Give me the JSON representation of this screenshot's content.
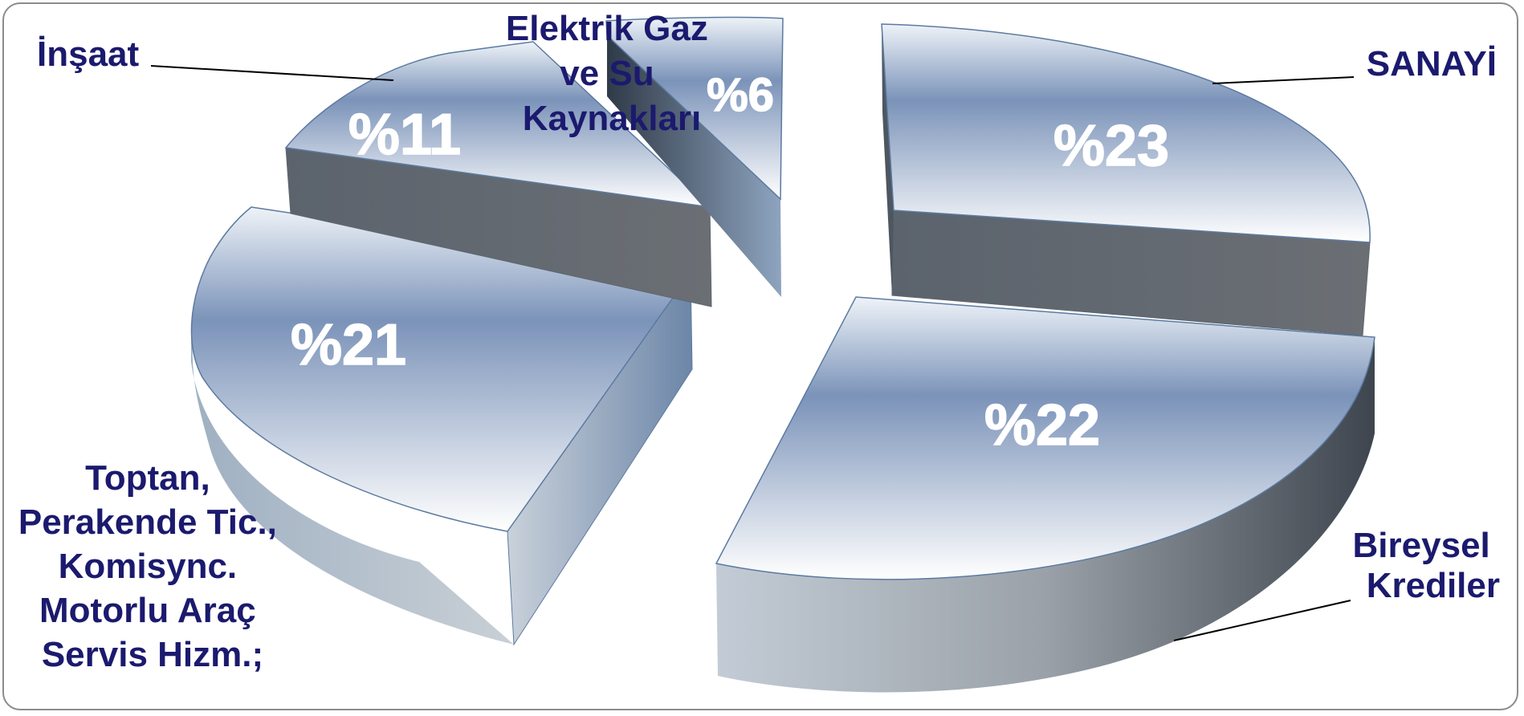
{
  "chart_data": {
    "type": "pie",
    "style": "3d-exploded",
    "slices": [
      {
        "label": [
          "SANAYİ"
        ],
        "value": 23,
        "value_label": "%23"
      },
      {
        "label": [
          "Bireysel",
          "Krediler"
        ],
        "value": 22,
        "value_label": "%22"
      },
      {
        "label": [
          "Toptan,",
          "Perakende Tic.,",
          "Komisync.",
          "Motorlu Araç",
          "Servis Hizm.;"
        ],
        "value": 21,
        "value_label": "%21"
      },
      {
        "label": [
          "İnşaat"
        ],
        "value": 11,
        "value_label": "%11"
      },
      {
        "label": [
          "Elektrik Gaz",
          "ve Su",
          "Kaynakları"
        ],
        "value": 6,
        "value_label": "%6"
      }
    ]
  },
  "colors": {
    "label_text": "#1b1a6e",
    "value_text": "#ffffff",
    "top_light": "#ffffff",
    "top_dark": "#7890b6",
    "side_dark": "#4a4f57",
    "side_light": "#b8c2cc",
    "frame": "#8c8c8c"
  }
}
